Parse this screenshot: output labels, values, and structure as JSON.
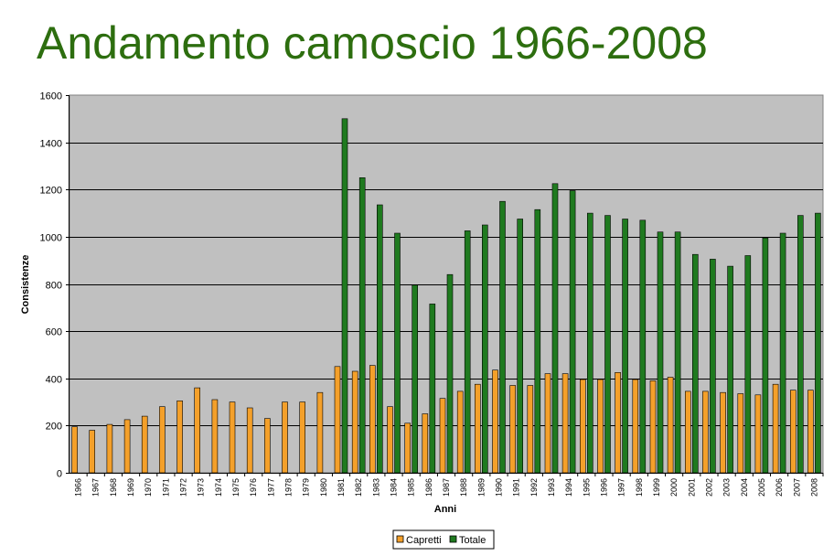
{
  "title": "Andamento camoscio 1966-2008",
  "chart_data": {
    "type": "bar",
    "title": "Andamento camoscio 1966-2008",
    "xlabel": "Anni",
    "ylabel": "Consistenze",
    "ylim": [
      0,
      1600
    ],
    "yticks": [
      0,
      200,
      400,
      600,
      800,
      1000,
      1200,
      1400,
      1600
    ],
    "grid": true,
    "legend_position": "bottom",
    "categories": [
      "1966",
      "1967",
      "1968",
      "1969",
      "1970",
      "1971",
      "1972",
      "1973",
      "1974",
      "1975",
      "1976",
      "1977",
      "1978",
      "1979",
      "1980",
      "1981",
      "1982",
      "1983",
      "1984",
      "1985",
      "1986",
      "1987",
      "1988",
      "1989",
      "1990",
      "1991",
      "1992",
      "1993",
      "1994",
      "1995",
      "1996",
      "1997",
      "1998",
      "1999",
      "2000",
      "2001",
      "2002",
      "2003",
      "2004",
      "2005",
      "2006",
      "2007",
      "2008"
    ],
    "series": [
      {
        "name": "Capretti",
        "color": "#f4a02a",
        "values": [
          195,
          180,
          205,
          225,
          240,
          280,
          305,
          360,
          310,
          300,
          275,
          230,
          300,
          300,
          340,
          450,
          430,
          455,
          280,
          210,
          250,
          315,
          345,
          375,
          435,
          370,
          370,
          420,
          420,
          395,
          395,
          425,
          395,
          390,
          405,
          345,
          345,
          340,
          335,
          330,
          375,
          350,
          350
        ]
      },
      {
        "name": "Totale",
        "color": "#1f7a1f",
        "values": [
          null,
          null,
          null,
          null,
          null,
          null,
          null,
          null,
          null,
          null,
          null,
          null,
          null,
          null,
          null,
          1500,
          1250,
          1135,
          1015,
          795,
          715,
          840,
          1025,
          1050,
          1150,
          1075,
          1115,
          1225,
          1195,
          1100,
          1090,
          1075,
          1070,
          1020,
          1020,
          925,
          905,
          875,
          920,
          995,
          1015,
          1090,
          1100
        ]
      }
    ]
  }
}
